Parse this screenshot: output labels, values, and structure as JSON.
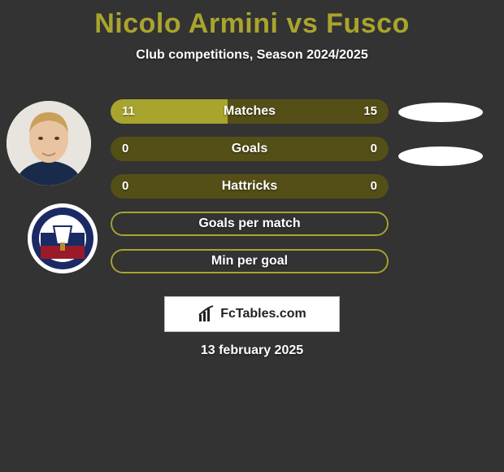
{
  "colors": {
    "background": "#333333",
    "title_color": "#a9a42e",
    "subtitle_color": "#ffffff",
    "date_color": "#ffffff",
    "bar_outer": "#544f16",
    "bar_fill": "#a9a42e",
    "bar_empty_outline": "#a9a42e",
    "bar_text": "#ffffff",
    "branding_text": "#222222"
  },
  "header": {
    "title": "Nicolo Armini vs Fusco",
    "subtitle": "Club competitions, Season 2024/2025"
  },
  "footer": {
    "branding": "FcTables.com",
    "date": "13 february 2025"
  },
  "avatars": {
    "player1_alt": "Nicolo Armini",
    "club_alt": "FC Crotone"
  },
  "chart": {
    "type": "horizontal-split-bar",
    "rows": [
      {
        "label": "Matches",
        "left": "11",
        "right": "15",
        "left_pct": 42,
        "filled": true
      },
      {
        "label": "Goals",
        "left": "0",
        "right": "0",
        "left_pct": 0,
        "filled": true
      },
      {
        "label": "Hattricks",
        "left": "0",
        "right": "0",
        "left_pct": 0,
        "filled": true
      },
      {
        "label": "Goals per match",
        "left": "",
        "right": "",
        "left_pct": 0,
        "filled": false
      },
      {
        "label": "Min per goal",
        "left": "",
        "right": "",
        "left_pct": 0,
        "filled": false
      }
    ]
  }
}
